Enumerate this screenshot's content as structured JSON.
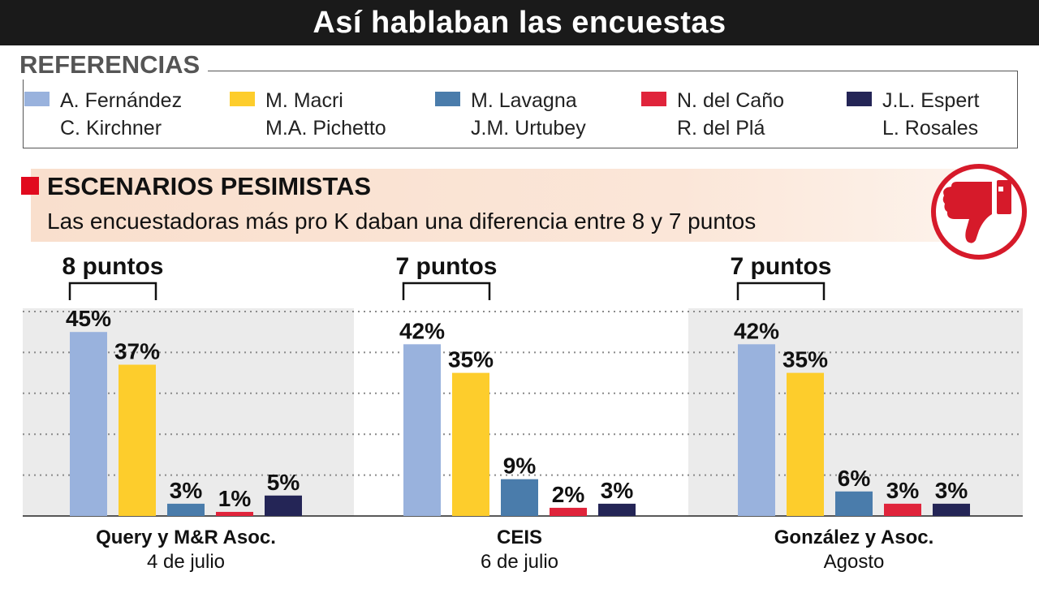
{
  "header": {
    "title": "Así hablaban las encuestas"
  },
  "legend": {
    "heading": "REFERENCIAS",
    "items": [
      {
        "name1": "A. Fernández",
        "name2": "C. Kirchner",
        "color": "#99b2dd"
      },
      {
        "name1": "M. Macri",
        "name2": "M.A. Pichetto",
        "color": "#fdcd2c"
      },
      {
        "name1": "M. Lavagna",
        "name2": "J.M. Urtubey",
        "color": "#4a7cab"
      },
      {
        "name1": "N. del Caño",
        "name2": "R. del Plá",
        "color": "#e0243b"
      },
      {
        "name1": "J.L. Espert",
        "name2": "L. Rosales",
        "color": "#242556"
      }
    ]
  },
  "section": {
    "title": "ESCENARIOS PESIMISTAS",
    "subtitle": "Las encuestadoras más pro K daban una diferencia entre 8 y 7 puntos",
    "icon": "thumbs-down-icon",
    "accent": "#e10a1e"
  },
  "chart_data": {
    "type": "bar",
    "title": "",
    "series_names": [
      "A. Fernández - C. Kirchner",
      "M. Macri - M.A. Pichetto",
      "M. Lavagna - J.M. Urtubey",
      "N. del Caño - R. del Plá",
      "J.L. Espert - L. Rosales"
    ],
    "colors": [
      "#99b2dd",
      "#fdcd2c",
      "#4a7cab",
      "#e0243b",
      "#242556"
    ],
    "ylim": [
      0,
      50
    ],
    "grid": true,
    "groups": [
      {
        "pollster": "Query y M&R Asoc.",
        "date": "4 de julio",
        "difference": "8 puntos",
        "values": [
          45,
          37,
          3,
          1,
          5
        ],
        "labels": [
          "45%",
          "37%",
          "3%",
          "1%",
          "5%"
        ]
      },
      {
        "pollster": "CEIS",
        "date": "6 de julio",
        "difference": "7 puntos",
        "values": [
          42,
          35,
          9,
          2,
          3
        ],
        "labels": [
          "42%",
          "35%",
          "9%",
          "2%",
          "3%"
        ]
      },
      {
        "pollster": "González y Asoc.",
        "date": "Agosto",
        "difference": "7 puntos",
        "values": [
          42,
          35,
          6,
          3,
          3
        ],
        "labels": [
          "42%",
          "35%",
          "6%",
          "3%",
          "3%"
        ]
      }
    ]
  }
}
